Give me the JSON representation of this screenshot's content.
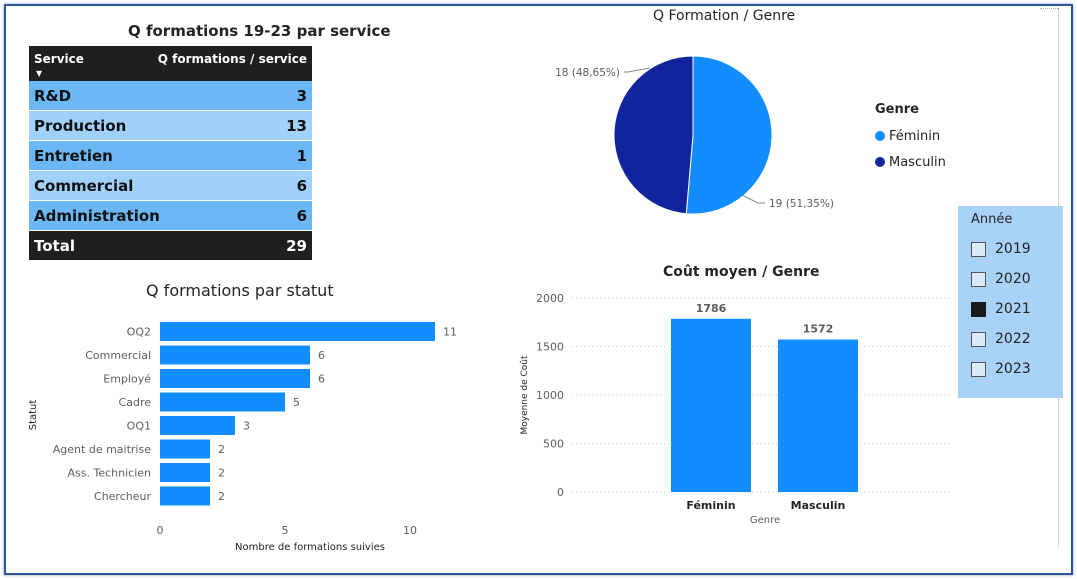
{
  "table": {
    "title": "Q formations 19-23 par service",
    "headers": [
      "Service",
      "Q formations / service"
    ],
    "rows": [
      {
        "service": "R&D",
        "value": "3"
      },
      {
        "service": "Production",
        "value": "13"
      },
      {
        "service": "Entretien",
        "value": "1"
      },
      {
        "service": "Commercial",
        "value": "6"
      },
      {
        "service": "Administration",
        "value": "6"
      }
    ],
    "total_label": "Total",
    "total_value": "29"
  },
  "pie": {
    "title": "Q Formation / Genre",
    "legend_title": "Genre",
    "legend": [
      {
        "label": "Féminin",
        "color": "#118dff"
      },
      {
        "label": "Masculin",
        "color": "#12239e"
      }
    ]
  },
  "bar_statut": {
    "title": "Q formations par statut"
  },
  "bar_genre": {
    "title": "Coût moyen / Genre"
  },
  "slicer": {
    "title": "Année",
    "options": [
      {
        "label": "2019",
        "checked": false
      },
      {
        "label": "2020",
        "checked": false
      },
      {
        "label": "2021",
        "checked": true
      },
      {
        "label": "2022",
        "checked": false
      },
      {
        "label": "2023",
        "checked": false
      }
    ]
  },
  "chart_data": [
    {
      "type": "pie",
      "title": "Q Formation / Genre",
      "categories": [
        "Féminin",
        "Masculin"
      ],
      "values": [
        19,
        18
      ],
      "data_labels": [
        "19 (51,35%)",
        "18 (48,65%)"
      ],
      "colors": [
        "#118dff",
        "#12239e"
      ],
      "legend": "right"
    },
    {
      "type": "bar",
      "orientation": "horizontal",
      "title": "Q formations par statut",
      "categories": [
        "OQ2",
        "Commercial",
        "Employé",
        "Cadre",
        "OQ1",
        "Agent de maitrise",
        "Ass. Technicien",
        "Chercheur"
      ],
      "values": [
        11,
        6,
        6,
        5,
        3,
        2,
        2,
        2
      ],
      "xlabel": "Nombre de formations suivies",
      "ylabel": "Statut",
      "xticks": [
        "0",
        "5",
        "10"
      ],
      "xlim": [
        0,
        12
      ],
      "color": "#118dff"
    },
    {
      "type": "bar",
      "title": "Coût moyen / Genre",
      "categories": [
        "Féminin",
        "Masculin"
      ],
      "values": [
        1786,
        1572
      ],
      "xlabel": "Genre",
      "ylabel": "Moyenne de Coût",
      "yticks": [
        "0",
        "500",
        "1000",
        "1500",
        "2000"
      ],
      "ylim": [
        0,
        2000
      ],
      "grid": true,
      "color": "#118dff"
    }
  ]
}
